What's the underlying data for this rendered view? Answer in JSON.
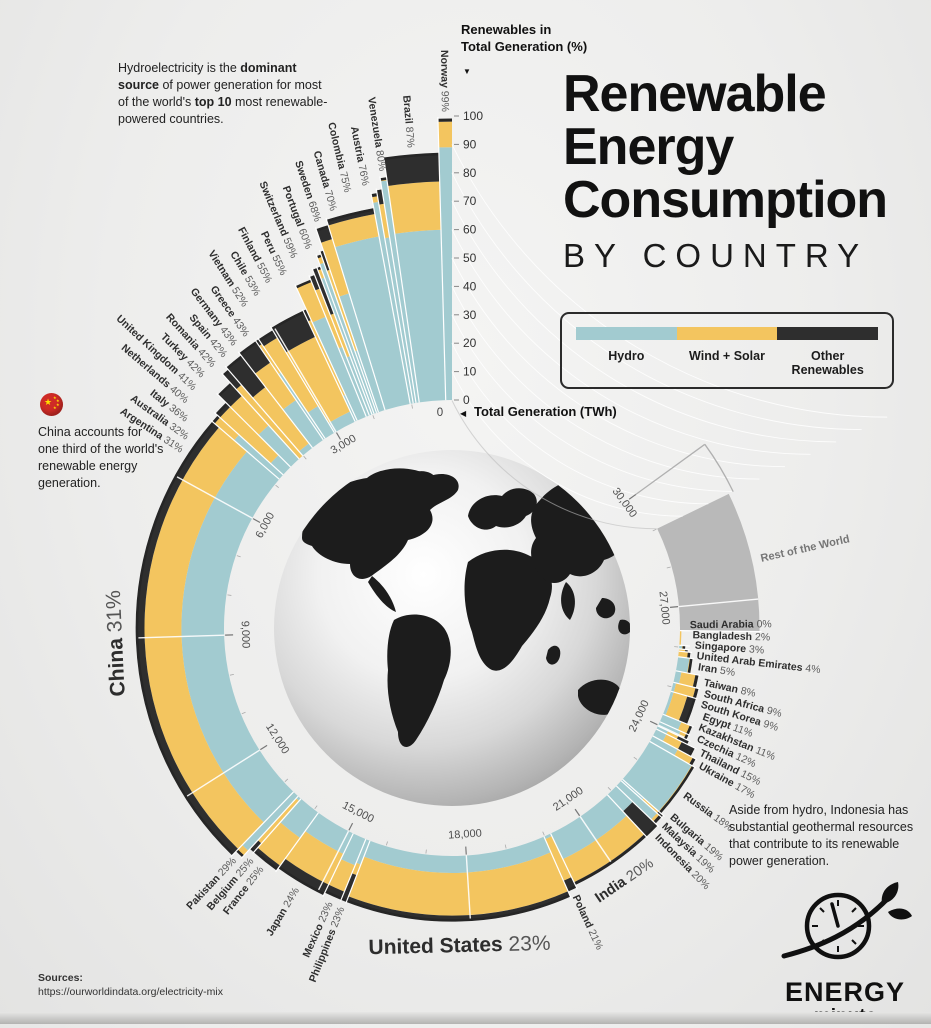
{
  "header": {
    "title_line1": "Renewable",
    "title_line2": "Energy",
    "title_line3": "Consumption",
    "subtitle": "BY COUNTRY"
  },
  "legend": {
    "items": [
      {
        "label": "Hydro",
        "color": "#a2cbd0"
      },
      {
        "label": "Wind + Solar",
        "color": "#f3c55f"
      },
      {
        "label": "Other Renewables",
        "color": "#2e2e2e"
      }
    ]
  },
  "axis_headers": {
    "percent_line1": "Renewables in",
    "percent_line2": "Total Generation (%)",
    "percent_pointer": "▼",
    "twh_zero": "0",
    "twh_pointer": "◀",
    "twh_label": "Total Generation (TWh)"
  },
  "annotations": {
    "hydro_note": {
      "segments": [
        {
          "text": "Hydroelectricity is the ",
          "bold": false
        },
        {
          "text": "dominant source",
          "bold": true
        },
        {
          "text": " of power generation for most of the world's ",
          "bold": false
        },
        {
          "text": "top 10",
          "bold": true
        },
        {
          "text": " most renewable-powered countries.",
          "bold": false
        }
      ]
    },
    "china_note": "China accounts for one third of the world's renewable energy generation.",
    "indonesia_note": "Aside from hydro, Indonesia has substantial geothermal resources that contribute to its renewable power generation."
  },
  "sources": {
    "label": "Sources:",
    "url": "https://ourworldindata.org/electricity-mix"
  },
  "logo": {
    "line1": "ENERGY",
    "line2": "minute"
  },
  "chart_data": {
    "type": "radial-stacked-bar",
    "title": "Renewable Energy Consumption by Country",
    "angle_axis": {
      "label": "Total Generation (TWh)",
      "min": 0,
      "max": 30000,
      "tick_step": 3000,
      "zero_label": "0",
      "tick_labels": [
        "3,000",
        "6,000",
        "9,000",
        "12,000",
        "15,000",
        "18,000",
        "21,000",
        "24,000",
        "27,000",
        "30,000"
      ],
      "sweep_deg": 306,
      "direction": "counterclockwise",
      "start": "top"
    },
    "radial_axis": {
      "label": "Renewables in Total Generation (%)",
      "min": 0,
      "max": 100,
      "tick_step": 10
    },
    "series_colors": {
      "hydro": "#a2cbd0",
      "wind_solar": "#f3c55f",
      "other": "#2e2e2e",
      "rest": "#b9b9b9"
    },
    "legend_entries": [
      "Hydro",
      "Wind + Solar",
      "Other Renewables"
    ],
    "countries": [
      {
        "name": "Norway",
        "share": 99,
        "total_twh": 155,
        "hydro": 89,
        "wind_solar": 9,
        "other": 1
      },
      {
        "name": "Brazil",
        "share": 87,
        "total_twh": 655,
        "hydro": 60,
        "wind_solar": 17,
        "other": 10
      },
      {
        "name": "Venezuela",
        "share": 80,
        "total_twh": 80,
        "hydro": 79,
        "wind_solar": 1,
        "other": 0
      },
      {
        "name": "Austria",
        "share": 76,
        "total_twh": 70,
        "hydro": 59,
        "wind_solar": 12,
        "other": 5
      },
      {
        "name": "Colombia",
        "share": 75,
        "total_twh": 75,
        "hydro": 72,
        "wind_solar": 2,
        "other": 1
      },
      {
        "name": "Canada",
        "share": 70,
        "total_twh": 640,
        "hydro": 60,
        "wind_solar": 8,
        "other": 2
      },
      {
        "name": "Sweden",
        "share": 68,
        "total_twh": 170,
        "hydro": 43,
        "wind_solar": 20,
        "other": 5
      },
      {
        "name": "Portugal",
        "share": 60,
        "total_twh": 50,
        "hydro": 23,
        "wind_solar": 30,
        "other": 7
      },
      {
        "name": "Switzerland",
        "share": 59,
        "total_twh": 65,
        "hydro": 56,
        "wind_solar": 3,
        "other": 0
      },
      {
        "name": "Peru",
        "share": 55,
        "total_twh": 55,
        "hydro": 51,
        "wind_solar": 4,
        "other": 0
      },
      {
        "name": "Finland",
        "share": 55,
        "total_twh": 70,
        "hydro": 22,
        "wind_solar": 16,
        "other": 17
      },
      {
        "name": "Chile",
        "share": 53,
        "total_twh": 80,
        "hydro": 26,
        "wind_solar": 22,
        "other": 5
      },
      {
        "name": "Vietnam",
        "share": 52,
        "total_twh": 245,
        "hydro": 38,
        "wind_solar": 14,
        "other": 0
      },
      {
        "name": "Greece",
        "share": 43,
        "total_twh": 55,
        "hydro": 10,
        "wind_solar": 29,
        "other": 4
      },
      {
        "name": "Germany",
        "share": 43,
        "total_twh": 580,
        "hydro": 4,
        "wind_solar": 29,
        "other": 10
      },
      {
        "name": "Spain",
        "share": 42,
        "total_twh": 270,
        "hydro": 11,
        "wind_solar": 28,
        "other": 3
      },
      {
        "name": "Romania",
        "share": 42,
        "total_twh": 55,
        "hydro": 28,
        "wind_solar": 12,
        "other": 2
      },
      {
        "name": "Turkey",
        "share": 42,
        "total_twh": 330,
        "hydro": 17,
        "wind_solar": 16,
        "other": 9
      },
      {
        "name": "United Kingdom",
        "share": 41,
        "total_twh": 310,
        "hydro": 2,
        "wind_solar": 25,
        "other": 14
      },
      {
        "name": "Netherlands",
        "share": 40,
        "total_twh": 120,
        "hydro": 0,
        "wind_solar": 33,
        "other": 7
      },
      {
        "name": "Italy",
        "share": 36,
        "total_twh": 290,
        "hydro": 16,
        "wind_solar": 14,
        "other": 6
      },
      {
        "name": "Australia",
        "share": 32,
        "total_twh": 265,
        "hydro": 6,
        "wind_solar": 24,
        "other": 2
      },
      {
        "name": "Argentina",
        "share": 31,
        "total_twh": 145,
        "hydro": 21,
        "wind_solar": 9,
        "other": 1
      },
      {
        "name": "China",
        "share": 31,
        "total_twh": 8500,
        "hydro": 15,
        "wind_solar": 13,
        "other": 3,
        "big": true,
        "font": 21
      },
      {
        "name": "Pakistan",
        "share": 29,
        "total_twh": 155,
        "hydro": 26,
        "wind_solar": 3,
        "other": 0
      },
      {
        "name": "Belgium",
        "share": 25,
        "total_twh": 95,
        "hydro": 1,
        "wind_solar": 20,
        "other": 4
      },
      {
        "name": "France",
        "share": 25,
        "total_twh": 550,
        "hydro": 11,
        "wind_solar": 12,
        "other": 2
      },
      {
        "name": "Japan",
        "share": 24,
        "total_twh": 1000,
        "hydro": 8,
        "wind_solar": 12,
        "other": 4
      },
      {
        "name": "Mexico",
        "share": 23,
        "total_twh": 340,
        "hydro": 10,
        "wind_solar": 10,
        "other": 3
      },
      {
        "name": "Philippines",
        "share": 23,
        "total_twh": 110,
        "hydro": 9,
        "wind_solar": 4,
        "other": 10
      },
      {
        "name": "United States",
        "share": 23,
        "total_twh": 4400,
        "hydro": 6,
        "wind_solar": 15,
        "other": 2,
        "big": true,
        "font": 21
      },
      {
        "name": "Poland",
        "share": 21,
        "total_twh": 180,
        "hydro": 1,
        "wind_solar": 16,
        "other": 4
      },
      {
        "name": "India",
        "share": 20,
        "total_twh": 1700,
        "hydro": 10,
        "wind_solar": 9,
        "other": 1,
        "big": true,
        "font": 14.5
      },
      {
        "name": "Indonesia",
        "share": 20,
        "total_twh": 310,
        "hydro": 8,
        "wind_solar": 0,
        "other": 12
      },
      {
        "name": "Malaysia",
        "share": 19,
        "total_twh": 175,
        "hydro": 17,
        "wind_solar": 1,
        "other": 1
      },
      {
        "name": "Bulgaria",
        "share": 19,
        "total_twh": 50,
        "hydro": 10,
        "wind_solar": 7,
        "other": 2
      },
      {
        "name": "Russia",
        "share": 18,
        "total_twh": 1150,
        "hydro": 17,
        "wind_solar": 1,
        "other": 0
      },
      {
        "name": "Ukraine",
        "share": 17,
        "total_twh": 155,
        "hydro": 10,
        "wind_solar": 6,
        "other": 1
      },
      {
        "name": "Thailand",
        "share": 15,
        "total_twh": 190,
        "hydro": 4,
        "wind_solar": 6,
        "other": 5
      },
      {
        "name": "Czechia",
        "share": 12,
        "total_twh": 85,
        "hydro": 4,
        "wind_solar": 4,
        "other": 4
      },
      {
        "name": "Kazakhstan",
        "share": 11,
        "total_twh": 115,
        "hydro": 8,
        "wind_solar": 3,
        "other": 0
      },
      {
        "name": "Egypt",
        "share": 11,
        "total_twh": 200,
        "hydro": 7,
        "wind_solar": 4,
        "other": 0
      },
      {
        "name": "South Korea",
        "share": 9,
        "total_twh": 600,
        "hydro": 1,
        "wind_solar": 5,
        "other": 3
      },
      {
        "name": "South Africa",
        "share": 9,
        "total_twh": 230,
        "hydro": 1,
        "wind_solar": 7,
        "other": 1
      },
      {
        "name": "Taiwan",
        "share": 8,
        "total_twh": 290,
        "hydro": 2,
        "wind_solar": 5,
        "other": 1
      },
      {
        "name": "Iran",
        "share": 5,
        "total_twh": 350,
        "hydro": 4,
        "wind_solar": 1,
        "other": 0
      },
      {
        "name": "United Arab Emirates",
        "share": 4,
        "total_twh": 140,
        "hydro": 0,
        "wind_solar": 4,
        "other": 0
      },
      {
        "name": "Singapore",
        "share": 3,
        "total_twh": 55,
        "hydro": 0,
        "wind_solar": 3,
        "other": 0
      },
      {
        "name": "Bangladesh",
        "share": 2,
        "total_twh": 90,
        "hydro": 1,
        "wind_solar": 1,
        "other": 0
      },
      {
        "name": "Saudi Arabia",
        "share": 0,
        "total_twh": 360,
        "hydro": 0,
        "wind_solar": 0.5,
        "other": 0
      }
    ],
    "rest_of_world": {
      "name": "Rest of the World",
      "total_twh": 2600,
      "bar_pct": 28,
      "color": "#b9b9b9"
    }
  }
}
